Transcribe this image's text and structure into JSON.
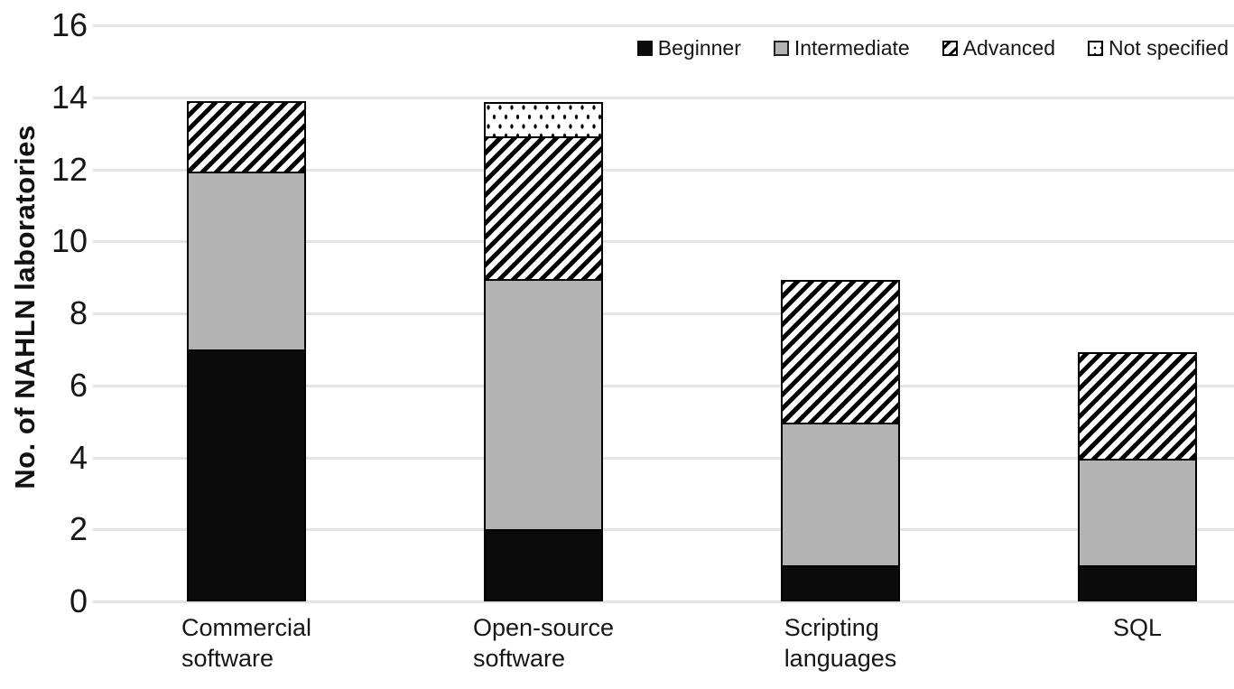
{
  "chart_data": {
    "type": "bar",
    "subtype": "stacked",
    "title": "",
    "xlabel": "",
    "ylabel": "No. of NAHLN laboratories",
    "ylim": [
      0,
      16
    ],
    "yticks": [
      0,
      2,
      4,
      6,
      8,
      10,
      12,
      14,
      16
    ],
    "grid": true,
    "legend_position": "top-right",
    "categories": [
      "Commercial software",
      "Open-source software",
      "Scripting languages",
      "SQL"
    ],
    "category_lines": [
      [
        "Commercial",
        "software"
      ],
      [
        "Open-source",
        "software"
      ],
      [
        "Scripting",
        "languages"
      ],
      [
        "SQL"
      ]
    ],
    "series": [
      {
        "name": "Beginner",
        "style": "solid-black",
        "color": "#0b0b0b",
        "values": [
          7,
          2,
          1,
          1
        ]
      },
      {
        "name": "Intermediate",
        "style": "solid-gray",
        "color": "#b3b3b4",
        "values": [
          5,
          7,
          4,
          3
        ]
      },
      {
        "name": "Advanced",
        "style": "diagonal-hatch",
        "color": "#000000",
        "values": [
          2,
          4,
          4,
          3
        ]
      },
      {
        "name": "Not specified",
        "style": "dots",
        "color": "#000000",
        "values": [
          0,
          1,
          0,
          0
        ]
      }
    ],
    "totals": [
      14,
      14,
      9,
      7
    ],
    "colors": {
      "background": "#ffffff",
      "gridline": "#e4e4e4",
      "text": "#161616"
    }
  }
}
